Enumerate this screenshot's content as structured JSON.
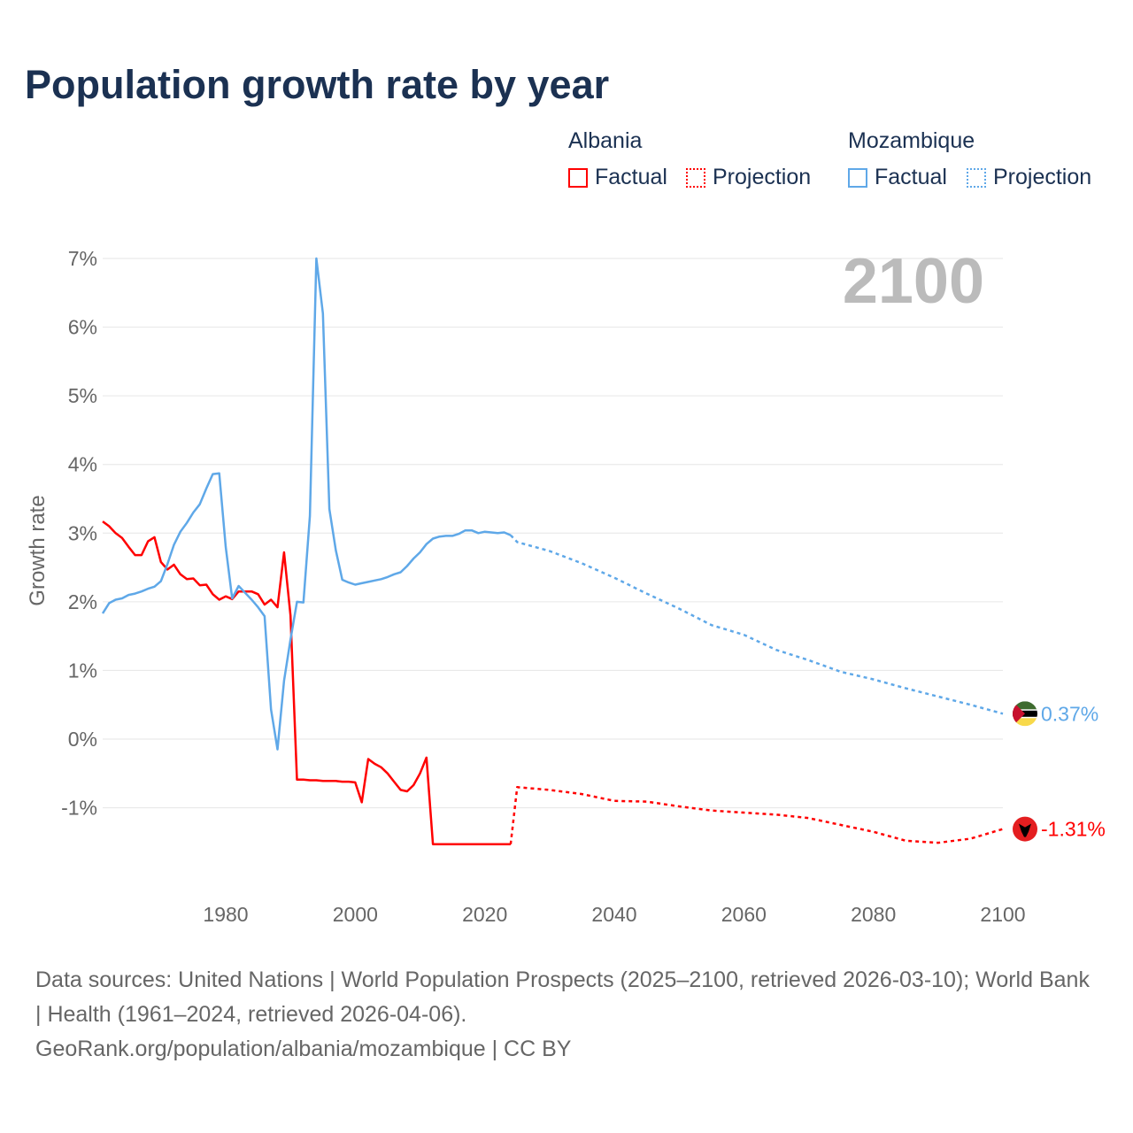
{
  "title": "Population growth rate by year",
  "legend": {
    "groups": [
      {
        "name": "Albania",
        "factual": "Factual",
        "projection": "Projection",
        "color": "#ff0000"
      },
      {
        "name": "Mozambique",
        "factual": "Factual",
        "projection": "Projection",
        "color": "#5fa8e8"
      }
    ]
  },
  "year_label": "2100",
  "footer": {
    "sources": "Data sources: United Nations | World Population Prospects (2025–2100, retrieved 2026-03-10); World Bank | Health (1961–2024, retrieved 2026-04-06).",
    "credit": "GeoRank.org/population/albania/mozambique | CC BY"
  },
  "chart_data": {
    "type": "line",
    "title": "Population growth rate by year",
    "xlabel": "",
    "ylabel": "Growth rate",
    "xlim": [
      1961,
      2100
    ],
    "ylim": [
      -1.9,
      7.2
    ],
    "xticks": [
      1980,
      2000,
      2020,
      2040,
      2060,
      2080,
      2100
    ],
    "xtick_labels": [
      "1980",
      "2000",
      "2020",
      "2040",
      "2060",
      "2080",
      "2100"
    ],
    "yticks": [
      -1,
      0,
      1,
      2,
      3,
      4,
      5,
      6,
      7
    ],
    "ytick_labels": [
      "-1%",
      "0%",
      "1%",
      "2%",
      "3%",
      "4%",
      "5%",
      "6%",
      "7%"
    ],
    "grid": true,
    "series": [
      {
        "name": "Albania Factual",
        "color": "#ff0000",
        "dash": false,
        "start": 1961,
        "values": [
          3.17,
          3.1,
          3.0,
          2.93,
          2.8,
          2.68,
          2.68,
          2.88,
          2.94,
          2.58,
          2.47,
          2.54,
          2.4,
          2.33,
          2.34,
          2.24,
          2.25,
          2.11,
          2.03,
          2.08,
          2.04,
          2.15,
          2.15,
          2.15,
          2.11,
          1.96,
          2.03,
          1.92,
          2.72,
          1.8,
          -0.59,
          -0.59,
          -0.6,
          -0.6,
          -0.61,
          -0.61,
          -0.61,
          -0.62,
          -0.62,
          -0.63,
          -0.92,
          -0.29,
          -0.36,
          -0.41,
          -0.5,
          -0.62,
          -0.74,
          -0.76,
          -0.67,
          -0.5,
          -0.27,
          -1.53,
          -1.53,
          -1.53,
          -1.53,
          -1.53,
          -1.53,
          -1.53,
          -1.53,
          -1.53,
          -1.53,
          -1.53,
          -1.53,
          -1.53
        ]
      },
      {
        "name": "Albania Projection",
        "color": "#ff0000",
        "dash": true,
        "x": [
          2024,
          2025,
          2030,
          2035,
          2040,
          2045,
          2050,
          2055,
          2060,
          2065,
          2070,
          2075,
          2080,
          2085,
          2090,
          2095,
          2100
        ],
        "values": [
          -1.53,
          -0.7,
          -0.74,
          -0.8,
          -0.9,
          -0.91,
          -0.98,
          -1.04,
          -1.07,
          -1.1,
          -1.15,
          -1.25,
          -1.35,
          -1.48,
          -1.51,
          -1.45,
          -1.31
        ]
      },
      {
        "name": "Mozambique Factual",
        "color": "#5fa8e8",
        "dash": false,
        "start": 1961,
        "values": [
          1.83,
          1.98,
          2.03,
          2.05,
          2.1,
          2.12,
          2.15,
          2.19,
          2.22,
          2.3,
          2.55,
          2.83,
          3.02,
          3.15,
          3.3,
          3.42,
          3.65,
          3.86,
          3.87,
          2.8,
          2.05,
          2.23,
          2.13,
          2.03,
          1.92,
          1.79,
          0.43,
          -0.15,
          0.85,
          1.45,
          2.0,
          1.99,
          3.25,
          7.0,
          6.2,
          3.35,
          2.75,
          2.32,
          2.28,
          2.25,
          2.27,
          2.29,
          2.31,
          2.33,
          2.36,
          2.4,
          2.43,
          2.52,
          2.63,
          2.72,
          2.84,
          2.92,
          2.95,
          2.96,
          2.96,
          2.99,
          3.04,
          3.04,
          3.0,
          3.02,
          3.01,
          3.0,
          3.01,
          2.97
        ]
      },
      {
        "name": "Mozambique Projection",
        "color": "#5fa8e8",
        "dash": true,
        "x": [
          2024,
          2025,
          2030,
          2035,
          2040,
          2045,
          2050,
          2055,
          2060,
          2065,
          2070,
          2075,
          2080,
          2085,
          2090,
          2095,
          2100
        ],
        "values": [
          2.97,
          2.87,
          2.74,
          2.56,
          2.35,
          2.12,
          1.9,
          1.66,
          1.52,
          1.3,
          1.15,
          0.98,
          0.87,
          0.74,
          0.62,
          0.5,
          0.37
        ]
      }
    ],
    "end_labels": [
      {
        "country": "Mozambique",
        "text": "0.37%",
        "value": 0.37,
        "color": "#5fa8e8"
      },
      {
        "country": "Albania",
        "text": "-1.31%",
        "value": -1.31,
        "color": "#ff0000"
      }
    ]
  }
}
